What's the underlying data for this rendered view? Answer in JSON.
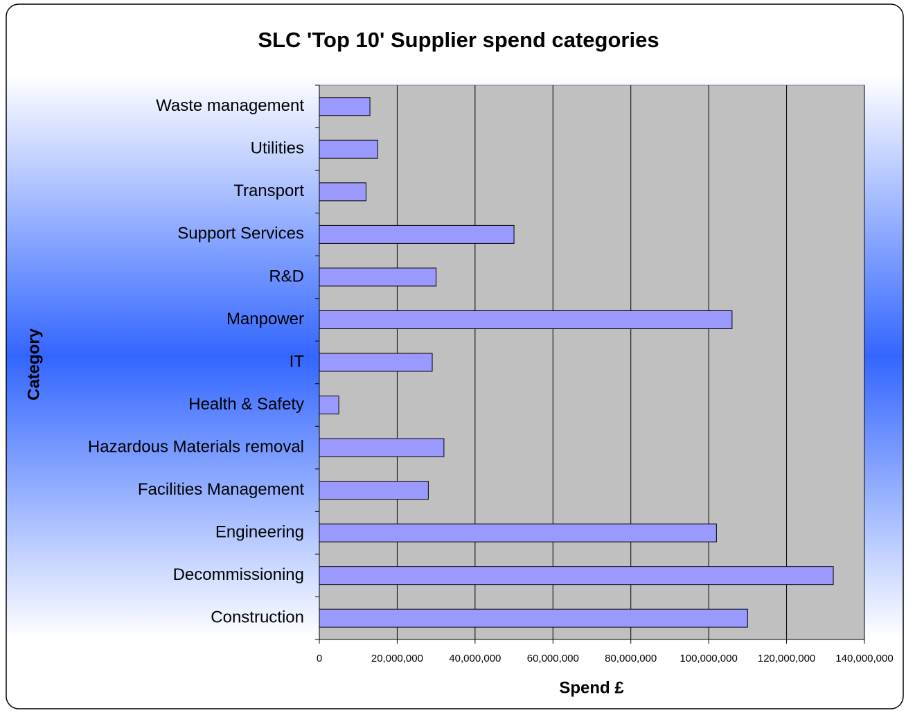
{
  "chart_data": {
    "type": "bar",
    "orientation": "horizontal",
    "title": "SLC 'Top 10' Supplier spend categories",
    "xlabel": "Spend £",
    "ylabel": "Category",
    "categories": [
      "Construction",
      "Decommissioning",
      "Engineering",
      "Facilities Management",
      "Hazardous Materials removal",
      "Health & Safety",
      "IT",
      "Manpower",
      "R&D",
      "Support Services",
      "Transport",
      "Utilities",
      "Waste management"
    ],
    "values": [
      110000000,
      132000000,
      102000000,
      28000000,
      32000000,
      5000000,
      29000000,
      106000000,
      30000000,
      50000000,
      12000000,
      15000000,
      13000000
    ],
    "color": "#9999ff",
    "xlim": [
      0,
      140000000
    ],
    "xticks": [
      0,
      {
        "value": 20000000,
        "label": "20,000,000"
      },
      {
        "value": 40000000,
        "label": "40,000,000"
      },
      {
        "value": 60000000,
        "label": "60,000,000"
      },
      {
        "value": 80000000,
        "label": "80,000,000"
      },
      {
        "value": 100000000,
        "label": "100,000,000"
      },
      {
        "value": 120000000,
        "label": "120,000,000"
      },
      {
        "value": 140000000,
        "label": "140,000,000"
      }
    ],
    "grid": true
  }
}
